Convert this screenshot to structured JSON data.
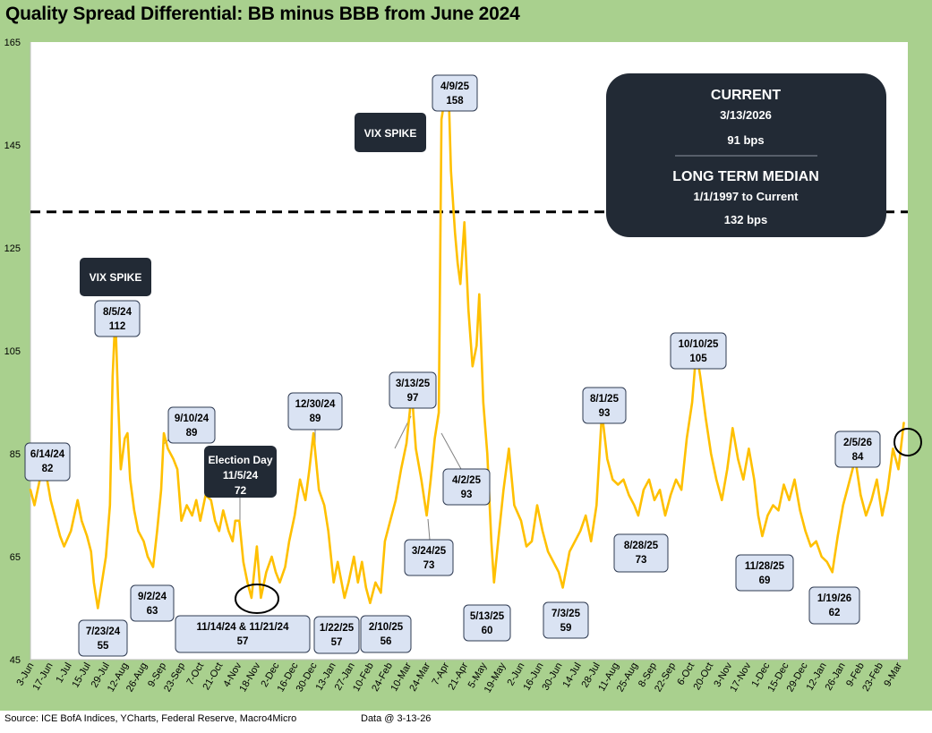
{
  "title": "Quality Spread Differential: BB minus BBB from June 2024",
  "footer": {
    "source": "Source: ICE BofA Indices, YCharts, Federal Reserve, Macro4Micro",
    "data_date": "Data @ 3-13-26"
  },
  "colors": {
    "line": "#ffc000",
    "frame": "#a9d08e",
    "dark_box": "#222a35",
    "label_box": "#dae3f3",
    "label_border": "#2f3b52"
  },
  "chart_data": {
    "type": "line",
    "title": "Quality Spread Differential: BB minus BBB from June 2024",
    "ylim": [
      45,
      165
    ],
    "yticks": [
      45,
      65,
      85,
      105,
      125,
      145,
      165
    ],
    "xlim": [
      "2024-06-03",
      "2026-03-16"
    ],
    "xticks": [
      "3-Jun",
      "17-Jun",
      "1-Jul",
      "15-Jul",
      "29-Jul",
      "12-Aug",
      "26-Aug",
      "9-Sep",
      "23-Sep",
      "7-Oct",
      "21-Oct",
      "4-Nov",
      "18-Nov",
      "2-Dec",
      "16-Dec",
      "30-Dec",
      "13-Jan",
      "27-Jan",
      "10-Feb",
      "24-Feb",
      "10-Mar",
      "24-Mar",
      "7-Apr",
      "21-Apr",
      "5-May",
      "19-May",
      "2-Jun",
      "16-Jun",
      "30-Jun",
      "14-Jul",
      "28-Jul",
      "11-Aug",
      "25-Aug",
      "8-Sep",
      "22-Sep",
      "6-Oct",
      "20-Oct",
      "3-Nov",
      "17-Nov",
      "1-Dec",
      "15-Dec",
      "29-Dec",
      "12-Jan",
      "26-Jan",
      "9-Feb",
      "23-Feb",
      "9-Mar"
    ],
    "median_line": 132,
    "series": [
      {
        "name": "BB minus BBB (bps)",
        "points": [
          [
            "2024-06-03",
            78
          ],
          [
            "2024-06-06",
            75
          ],
          [
            "2024-06-10",
            80
          ],
          [
            "2024-06-14",
            82
          ],
          [
            "2024-06-18",
            76
          ],
          [
            "2024-06-21",
            73
          ],
          [
            "2024-06-25",
            69
          ],
          [
            "2024-06-28",
            67
          ],
          [
            "2024-07-03",
            70
          ],
          [
            "2024-07-08",
            76
          ],
          [
            "2024-07-11",
            72
          ],
          [
            "2024-07-15",
            69
          ],
          [
            "2024-07-18",
            66
          ],
          [
            "2024-07-20",
            60
          ],
          [
            "2024-07-23",
            55
          ],
          [
            "2024-07-26",
            60
          ],
          [
            "2024-07-29",
            65
          ],
          [
            "2024-08-01",
            75
          ],
          [
            "2024-08-03",
            100
          ],
          [
            "2024-08-05",
            112
          ],
          [
            "2024-08-07",
            96
          ],
          [
            "2024-08-09",
            82
          ],
          [
            "2024-08-12",
            88
          ],
          [
            "2024-08-14",
            89
          ],
          [
            "2024-08-16",
            80
          ],
          [
            "2024-08-19",
            74
          ],
          [
            "2024-08-22",
            70
          ],
          [
            "2024-08-26",
            68
          ],
          [
            "2024-08-29",
            65
          ],
          [
            "2024-09-02",
            63
          ],
          [
            "2024-09-05",
            70
          ],
          [
            "2024-09-08",
            78
          ],
          [
            "2024-09-10",
            89
          ],
          [
            "2024-09-13",
            86
          ],
          [
            "2024-09-17",
            84
          ],
          [
            "2024-09-20",
            82
          ],
          [
            "2024-09-23",
            72
          ],
          [
            "2024-09-27",
            75
          ],
          [
            "2024-10-01",
            73
          ],
          [
            "2024-10-04",
            76
          ],
          [
            "2024-10-07",
            72
          ],
          [
            "2024-10-11",
            77
          ],
          [
            "2024-10-15",
            76
          ],
          [
            "2024-10-18",
            72
          ],
          [
            "2024-10-21",
            70
          ],
          [
            "2024-10-24",
            74
          ],
          [
            "2024-10-28",
            70
          ],
          [
            "2024-10-31",
            68
          ],
          [
            "2024-11-02",
            72
          ],
          [
            "2024-11-05",
            72
          ],
          [
            "2024-11-08",
            64
          ],
          [
            "2024-11-11",
            60
          ],
          [
            "2024-11-14",
            57
          ],
          [
            "2024-11-18",
            67
          ],
          [
            "2024-11-21",
            57
          ],
          [
            "2024-11-25",
            62
          ],
          [
            "2024-11-29",
            65
          ],
          [
            "2024-12-02",
            62
          ],
          [
            "2024-12-05",
            60
          ],
          [
            "2024-12-09",
            63
          ],
          [
            "2024-12-12",
            68
          ],
          [
            "2024-12-16",
            73
          ],
          [
            "2024-12-20",
            80
          ],
          [
            "2024-12-24",
            76
          ],
          [
            "2024-12-27",
            82
          ],
          [
            "2024-12-30",
            89
          ],
          [
            "2025-01-03",
            78
          ],
          [
            "2025-01-07",
            75
          ],
          [
            "2025-01-10",
            70
          ],
          [
            "2025-01-14",
            60
          ],
          [
            "2025-01-17",
            64
          ],
          [
            "2025-01-22",
            57
          ],
          [
            "2025-01-25",
            60
          ],
          [
            "2025-01-29",
            65
          ],
          [
            "2025-02-01",
            60
          ],
          [
            "2025-02-04",
            64
          ],
          [
            "2025-02-07",
            59
          ],
          [
            "2025-02-10",
            56
          ],
          [
            "2025-02-14",
            60
          ],
          [
            "2025-02-18",
            58
          ],
          [
            "2025-02-21",
            68
          ],
          [
            "2025-02-25",
            72
          ],
          [
            "2025-03-01",
            76
          ],
          [
            "2025-03-05",
            82
          ],
          [
            "2025-03-09",
            87
          ],
          [
            "2025-03-13",
            97
          ],
          [
            "2025-03-16",
            86
          ],
          [
            "2025-03-20",
            80
          ],
          [
            "2025-03-24",
            73
          ],
          [
            "2025-03-27",
            80
          ],
          [
            "2025-03-30",
            88
          ],
          [
            "2025-04-02",
            93
          ],
          [
            "2025-04-04",
            150
          ],
          [
            "2025-04-07",
            155
          ],
          [
            "2025-04-09",
            158
          ],
          [
            "2025-04-11",
            140
          ],
          [
            "2025-04-14",
            128
          ],
          [
            "2025-04-16",
            122
          ],
          [
            "2025-04-18",
            118
          ],
          [
            "2025-04-21",
            130
          ],
          [
            "2025-04-24",
            113
          ],
          [
            "2025-04-27",
            102
          ],
          [
            "2025-04-30",
            106
          ],
          [
            "2025-05-02",
            116
          ],
          [
            "2025-05-05",
            95
          ],
          [
            "2025-05-08",
            85
          ],
          [
            "2025-05-11",
            68
          ],
          [
            "2025-05-13",
            60
          ],
          [
            "2025-05-16",
            68
          ],
          [
            "2025-05-20",
            78
          ],
          [
            "2025-05-24",
            86
          ],
          [
            "2025-05-28",
            75
          ],
          [
            "2025-06-02",
            72
          ],
          [
            "2025-06-06",
            67
          ],
          [
            "2025-06-10",
            68
          ],
          [
            "2025-06-14",
            75
          ],
          [
            "2025-06-18",
            70
          ],
          [
            "2025-06-22",
            66
          ],
          [
            "2025-06-26",
            64
          ],
          [
            "2025-06-30",
            62
          ],
          [
            "2025-07-03",
            59
          ],
          [
            "2025-07-08",
            66
          ],
          [
            "2025-07-12",
            68
          ],
          [
            "2025-07-16",
            70
          ],
          [
            "2025-07-20",
            73
          ],
          [
            "2025-07-24",
            68
          ],
          [
            "2025-07-28",
            75
          ],
          [
            "2025-08-01",
            93
          ],
          [
            "2025-08-05",
            84
          ],
          [
            "2025-08-09",
            80
          ],
          [
            "2025-08-13",
            79
          ],
          [
            "2025-08-17",
            80
          ],
          [
            "2025-08-21",
            77
          ],
          [
            "2025-08-25",
            75
          ],
          [
            "2025-08-28",
            73
          ],
          [
            "2025-09-01",
            78
          ],
          [
            "2025-09-05",
            80
          ],
          [
            "2025-09-09",
            76
          ],
          [
            "2025-09-13",
            78
          ],
          [
            "2025-09-17",
            73
          ],
          [
            "2025-09-21",
            77
          ],
          [
            "2025-09-25",
            80
          ],
          [
            "2025-09-29",
            78
          ],
          [
            "2025-10-03",
            88
          ],
          [
            "2025-10-07",
            95
          ],
          [
            "2025-10-10",
            105
          ],
          [
            "2025-10-13",
            100
          ],
          [
            "2025-10-17",
            92
          ],
          [
            "2025-10-21",
            85
          ],
          [
            "2025-10-25",
            80
          ],
          [
            "2025-10-29",
            76
          ],
          [
            "2025-11-02",
            82
          ],
          [
            "2025-11-06",
            90
          ],
          [
            "2025-11-10",
            84
          ],
          [
            "2025-11-14",
            80
          ],
          [
            "2025-11-18",
            86
          ],
          [
            "2025-11-22",
            80
          ],
          [
            "2025-11-25",
            73
          ],
          [
            "2025-11-28",
            69
          ],
          [
            "2025-12-02",
            73
          ],
          [
            "2025-12-06",
            75
          ],
          [
            "2025-12-10",
            74
          ],
          [
            "2025-12-14",
            79
          ],
          [
            "2025-12-18",
            76
          ],
          [
            "2025-12-22",
            80
          ],
          [
            "2025-12-26",
            74
          ],
          [
            "2025-12-30",
            70
          ],
          [
            "2026-01-03",
            67
          ],
          [
            "2026-01-07",
            68
          ],
          [
            "2026-01-11",
            65
          ],
          [
            "2026-01-15",
            64
          ],
          [
            "2026-01-19",
            62
          ],
          [
            "2026-01-23",
            69
          ],
          [
            "2026-01-27",
            75
          ],
          [
            "2026-01-31",
            79
          ],
          [
            "2026-02-05",
            84
          ],
          [
            "2026-02-09",
            77
          ],
          [
            "2026-02-13",
            73
          ],
          [
            "2026-02-17",
            76
          ],
          [
            "2026-02-21",
            80
          ],
          [
            "2026-02-25",
            73
          ],
          [
            "2026-03-01",
            78
          ],
          [
            "2026-03-05",
            86
          ],
          [
            "2026-03-09",
            82
          ],
          [
            "2026-03-13",
            91
          ]
        ]
      }
    ],
    "annotations": [
      {
        "date": "6/14/24",
        "value": "82"
      },
      {
        "date": "8/5/24",
        "value": "112"
      },
      {
        "date": "7/23/24",
        "value": "55"
      },
      {
        "date": "9/10/24",
        "value": "89"
      },
      {
        "date": "9/2/24",
        "value": "63"
      },
      {
        "date": "Election Day 11/5/24",
        "value": "72"
      },
      {
        "date": "11/14/24 & 11/21/24",
        "value": "57"
      },
      {
        "date": "12/30/24",
        "value": "89"
      },
      {
        "date": "1/22/25",
        "value": "57"
      },
      {
        "date": "2/10/25",
        "value": "56"
      },
      {
        "date": "3/13/25",
        "value": "97"
      },
      {
        "date": "3/24/25",
        "value": "73"
      },
      {
        "date": "4/9/25",
        "value": "158"
      },
      {
        "date": "4/2/25",
        "value": "93"
      },
      {
        "date": "5/13/25",
        "value": "60"
      },
      {
        "date": "7/3/25",
        "value": "59"
      },
      {
        "date": "8/1/25",
        "value": "93"
      },
      {
        "date": "8/28/25",
        "value": "73"
      },
      {
        "date": "10/10/25",
        "value": "105"
      },
      {
        "date": "11/28/25",
        "value": "69"
      },
      {
        "date": "1/19/26",
        "value": "62"
      },
      {
        "date": "2/5/26",
        "value": "84"
      }
    ],
    "vix_labels": [
      "VIX SPIKE",
      "VIX SPIKE"
    ],
    "summary": {
      "current_title": "CURRENT",
      "current_date": "3/13/2026",
      "current_value": "91 bps",
      "median_title": "LONG TERM MEDIAN",
      "median_range": "1/1/1997 to Current",
      "median_value": "132 bps"
    }
  }
}
